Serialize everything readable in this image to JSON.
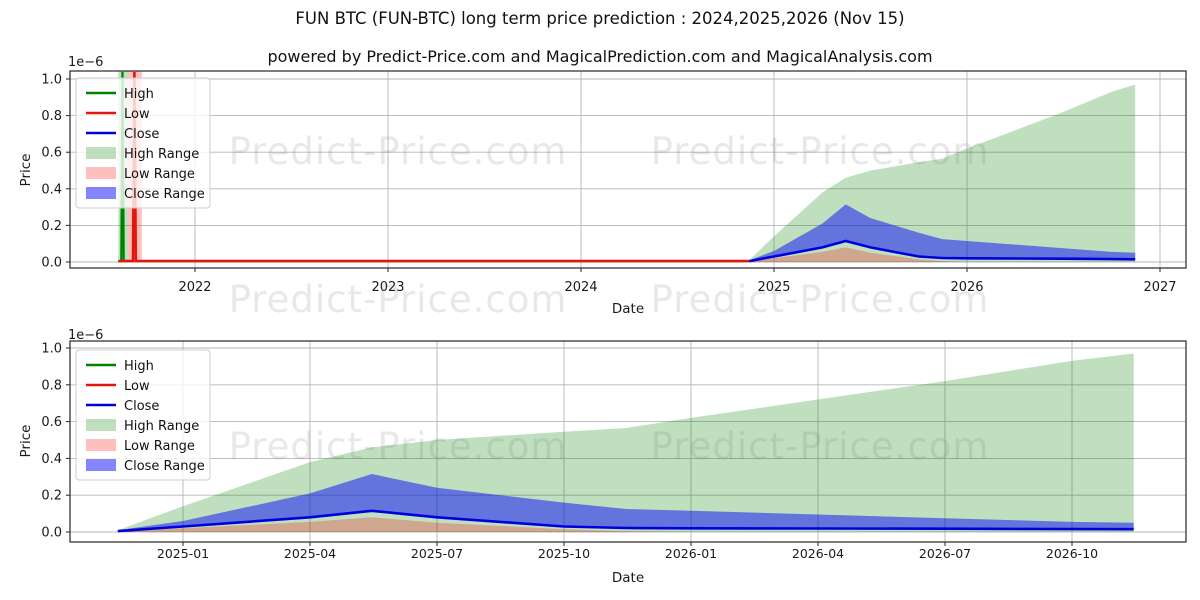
{
  "title": "FUN BTC (FUN-BTC) long term price prediction : 2024,2025,2026 (Nov 15)",
  "subtitle": "powered by Predict-Price.com and MagicalPrediction.com and MagicalAnalysis.com",
  "watermark": {
    "text": "Predict-Price.com"
  },
  "colors": {
    "high_line": "#008000",
    "low_line": "#e3160c",
    "close_line": "#0000dd",
    "high_range_fill": "rgba(0,128,0,0.25)",
    "low_range_fill": "rgba(255,0,0,0.25)",
    "close_range_fill": "rgba(0,0,255,0.48)",
    "grid": "#b6b6b6",
    "spine": "#262626",
    "tick_text": "#1a1a1a"
  },
  "chart_data": [
    {
      "type": "area",
      "name": "history-and-prediction",
      "xlabel": "Date",
      "ylabel": "Price",
      "y_offset_label": "1e−6",
      "y_unit": "1e-6",
      "ylim": [
        0,
        1.05
      ],
      "grid": true,
      "legend_position": "upper left",
      "legend": [
        "High",
        "Low",
        "Close",
        "High Range",
        "Low Range",
        "Close Range"
      ],
      "x_tick_labels": [
        "2022",
        "2023",
        "2024",
        "2025",
        "2026",
        "2027"
      ],
      "y_tick_labels": [
        "0.0",
        "0.2",
        "0.4",
        "0.6",
        "0.8",
        "1.0"
      ],
      "y_tick_values": [
        0,
        0.2,
        0.4,
        0.6,
        0.8,
        1.0
      ],
      "historical": {
        "start": "2021-08-08",
        "end": "2024-11-15",
        "low_level": 0.005,
        "high_spike": {
          "date": "2021-08-16",
          "peak": 1.04
        },
        "low_spike": {
          "date": "2021-09-08",
          "peak": 1.04
        },
        "high_range_band": [
          "2021-08-08",
          "2021-08-26"
        ],
        "low_range_band": [
          "2021-08-26",
          "2021-09-22"
        ]
      },
      "prediction_dates": [
        "2024-11-15",
        "2025-01-01",
        "2025-04-01",
        "2025-05-15",
        "2025-07-01",
        "2025-10-01",
        "2025-11-15",
        "2026-01-01",
        "2026-04-01",
        "2026-07-01",
        "2026-10-01",
        "2026-11-15"
      ],
      "series": [
        {
          "name": "High Range",
          "kind": "area",
          "values": [
            0.01,
            0.14,
            0.38,
            0.46,
            0.5,
            0.545,
            0.565,
            0.62,
            0.72,
            0.82,
            0.93,
            0.97
          ]
        },
        {
          "name": "Low Range",
          "kind": "area",
          "values": [
            0.003,
            0.02,
            0.055,
            0.08,
            0.05,
            0.015,
            0.005,
            0,
            0,
            0,
            0,
            0
          ]
        },
        {
          "name": "Close Range",
          "kind": "band",
          "upper": [
            0.01,
            0.06,
            0.21,
            0.315,
            0.24,
            0.16,
            0.125,
            0.115,
            0.095,
            0.075,
            0.055,
            0.05
          ]
        },
        {
          "name": "Close",
          "kind": "line",
          "values": [
            0.005,
            0.03,
            0.08,
            0.115,
            0.08,
            0.03,
            0.022,
            0.02,
            0.019,
            0.018,
            0.016,
            0.015
          ]
        }
      ]
    },
    {
      "type": "area",
      "name": "prediction-detail",
      "xlabel": "Date",
      "ylabel": "Price",
      "y_offset_label": "1e−6",
      "y_unit": "1e-6",
      "ylim": [
        0,
        1.05
      ],
      "grid": true,
      "legend_position": "upper left",
      "legend": [
        "High",
        "Low",
        "Close",
        "High Range",
        "Low Range",
        "Close Range"
      ],
      "x_tick_labels": [
        "2025-01",
        "2025-04",
        "2025-07",
        "2025-10",
        "2026-01",
        "2026-04",
        "2026-07",
        "2026-10"
      ],
      "y_tick_labels": [
        "0.0",
        "0.2",
        "0.4",
        "0.6",
        "0.8",
        "1.0"
      ],
      "y_tick_values": [
        0,
        0.2,
        0.4,
        0.6,
        0.8,
        1.0
      ],
      "prediction_dates": [
        "2024-11-15",
        "2025-01-01",
        "2025-04-01",
        "2025-05-15",
        "2025-07-01",
        "2025-10-01",
        "2025-11-15",
        "2026-01-01",
        "2026-04-01",
        "2026-07-01",
        "2026-10-01",
        "2026-11-15"
      ],
      "series": [
        {
          "name": "High Range",
          "kind": "area",
          "values": [
            0.01,
            0.14,
            0.38,
            0.46,
            0.5,
            0.545,
            0.565,
            0.62,
            0.72,
            0.82,
            0.93,
            0.97
          ]
        },
        {
          "name": "Low Range",
          "kind": "area",
          "values": [
            0.003,
            0.02,
            0.055,
            0.08,
            0.05,
            0.015,
            0.005,
            0,
            0,
            0,
            0,
            0
          ]
        },
        {
          "name": "Close Range",
          "kind": "band",
          "upper": [
            0.01,
            0.06,
            0.21,
            0.315,
            0.24,
            0.16,
            0.125,
            0.115,
            0.095,
            0.075,
            0.055,
            0.05
          ]
        },
        {
          "name": "Close",
          "kind": "line",
          "values": [
            0.005,
            0.03,
            0.08,
            0.115,
            0.08,
            0.03,
            0.022,
            0.02,
            0.019,
            0.018,
            0.016,
            0.015
          ]
        }
      ]
    }
  ]
}
